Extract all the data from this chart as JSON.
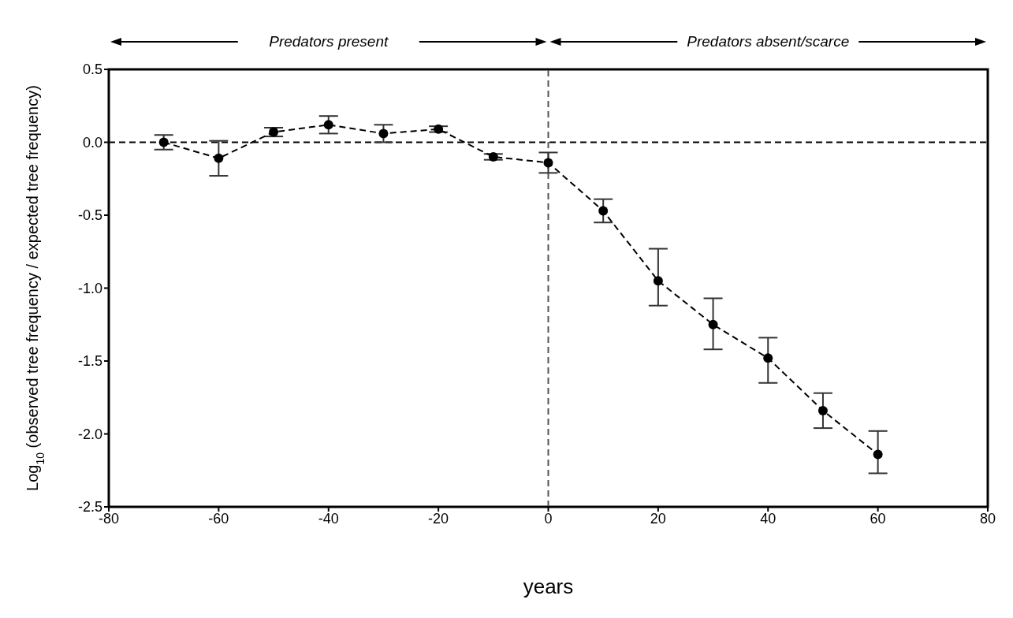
{
  "chart_data": {
    "type": "line",
    "xlabel": "years",
    "ylabel": "Log$_{10}$ (observed tree frequency / expected tree frequency)",
    "x": [
      -70,
      -60,
      -50,
      -40,
      -30,
      -20,
      -10,
      0,
      10,
      20,
      30,
      40,
      50,
      60
    ],
    "series": [
      {
        "color": "#000000",
        "values": [
          0.0,
          -0.11,
          0.07,
          0.12,
          0.06,
          0.09,
          -0.1,
          -0.14,
          -0.47,
          -0.95,
          -1.25,
          -1.48,
          -1.84,
          -2.14
        ],
        "errors": [
          0.05,
          [
            -0.23,
            0.01
          ],
          0.03,
          0.06,
          0.06,
          0.02,
          0.02,
          0.07,
          0.08,
          [
            -1.12,
            -0.73
          ],
          [
            -1.42,
            -1.07
          ],
          [
            -1.65,
            -1.34
          ],
          [
            -1.96,
            -1.72
          ],
          [
            -2.27,
            -1.98
          ]
        ]
      }
    ],
    "xlim": [
      -80,
      80
    ],
    "xticks": [
      -80,
      -60,
      -40,
      -20,
      0,
      20,
      40,
      60,
      80
    ],
    "ylim": [
      -2.5,
      0.5
    ],
    "yticks": [
      {
        "value": -2.5,
        "label": "-2.5"
      },
      {
        "value": -2.0,
        "label": "-2.0"
      },
      {
        "value": -1.5,
        "label": "-1.5"
      },
      {
        "value": -1.0,
        "label": "-1.0"
      },
      {
        "value": -0.5,
        "label": "-0.5"
      },
      {
        "value": 0.0,
        "label": "0.0"
      },
      {
        "value": 0.5,
        "label": "0.5"
      }
    ],
    "ref_lines": [
      {
        "axis": "y",
        "value": 0,
        "line_style": "dashed",
        "color": "#000000"
      },
      {
        "axis": "x",
        "value": 0,
        "line_style": "dashed",
        "color": "#555555"
      }
    ],
    "annotations": [
      "Predators present",
      "Predators absent/scarce"
    ],
    "marker": "circle",
    "line_style": "dashed",
    "grid": false,
    "legend": false
  }
}
